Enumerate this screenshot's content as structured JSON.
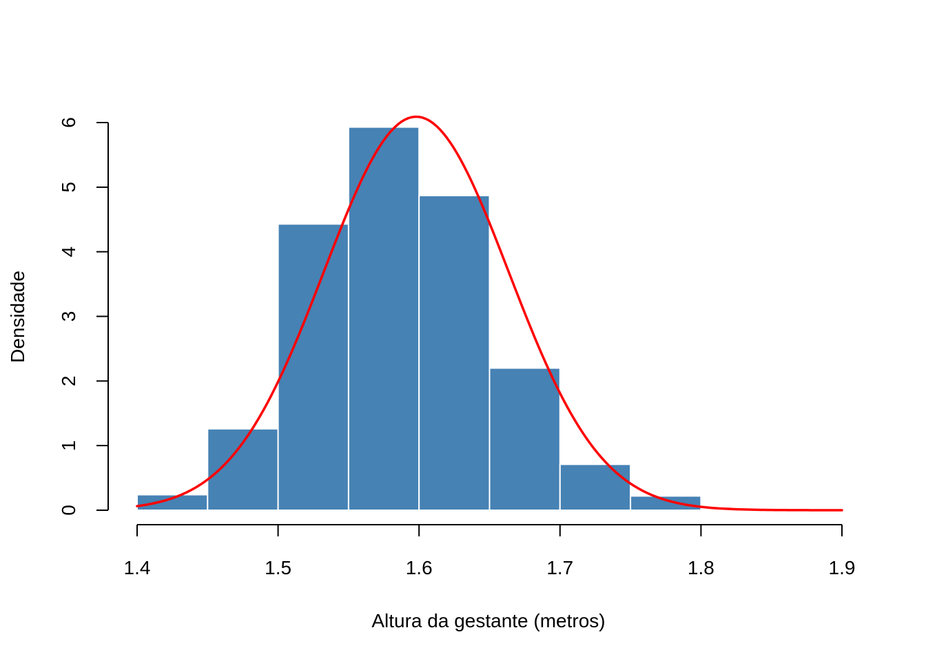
{
  "chart_data": {
    "type": "bar",
    "title": "",
    "xlabel": "Altura da gestante (metros)",
    "ylabel": "Densidade",
    "xlim": [
      1.4,
      1.9
    ],
    "ylim": [
      0,
      6
    ],
    "x_ticks": [
      "1.4",
      "1.5",
      "1.6",
      "1.7",
      "1.8",
      "1.9"
    ],
    "y_ticks": [
      "0",
      "1",
      "2",
      "3",
      "4",
      "5",
      "6"
    ],
    "grid": false,
    "bars": [
      {
        "x0": 1.4,
        "x1": 1.45,
        "density": 0.24
      },
      {
        "x0": 1.45,
        "x1": 1.5,
        "density": 1.26
      },
      {
        "x0": 1.5,
        "x1": 1.55,
        "density": 4.43
      },
      {
        "x0": 1.55,
        "x1": 1.6,
        "density": 5.93
      },
      {
        "x0": 1.6,
        "x1": 1.65,
        "density": 4.87
      },
      {
        "x0": 1.65,
        "x1": 1.7,
        "density": 2.2
      },
      {
        "x0": 1.7,
        "x1": 1.75,
        "density": 0.71
      },
      {
        "x0": 1.75,
        "x1": 1.8,
        "density": 0.22
      }
    ],
    "density_curve": {
      "kind": "normal",
      "mean": 1.598,
      "sd": 0.0655,
      "x_range": [
        1.4,
        1.9
      ]
    },
    "colors": {
      "bar_fill": "#4682b4",
      "bar_border": "#ffffff",
      "curve": "#ff0000",
      "axis": "#000000"
    }
  }
}
